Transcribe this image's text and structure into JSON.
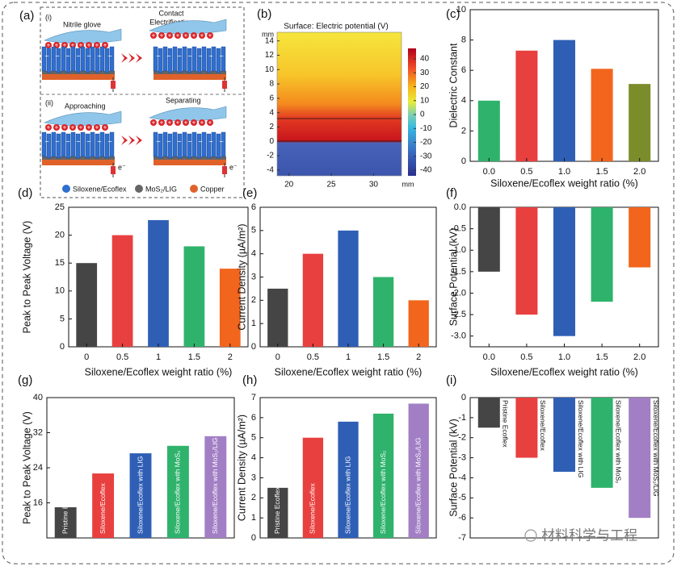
{
  "diagram": {
    "panel_label": "(a)",
    "part_i": "(i)",
    "glove": "Nitrile glove",
    "contact": [
      "Contact",
      "Electrification"
    ],
    "part_ii": "(ii)",
    "approaching": "Approaching",
    "separating": "Separating",
    "electron": "e⁻",
    "legend": [
      "Siloxene/Ecoflex",
      "MoS₂/LIG",
      "Copper"
    ]
  },
  "chart_data": [
    {
      "type": "heatmap",
      "panel_label": "(b)",
      "title": "Surface: Electric potential (V)",
      "xlim": [
        18.6,
        33.3
      ],
      "ylim": [
        -4.8,
        15.2
      ],
      "xticks": [
        20,
        25,
        30
      ],
      "yticks": [
        -4,
        -2,
        0,
        2,
        4,
        6,
        8,
        10,
        12,
        14
      ],
      "x_unit": "mm",
      "y_unit": "mm",
      "colorbar_lim": [
        -44,
        47.5
      ],
      "colorbar_ticks": [
        40,
        30,
        20,
        10,
        0,
        -10,
        -20,
        -30,
        -40
      ]
    },
    {
      "type": "bar",
      "panel_label": "(c)",
      "categories": [
        "0.0",
        "0.5",
        "1.0",
        "1.5",
        "2.0"
      ],
      "values": [
        4,
        7.3,
        8,
        6.1,
        5.1
      ],
      "colors": [
        "#2fb36c",
        "#e8403f",
        "#2f5fb5",
        "#f2651d",
        "#7b8c2a"
      ],
      "ylim": [
        0,
        10
      ],
      "yticks": [
        0,
        2,
        4,
        6,
        8,
        10
      ],
      "xlabel": "Siloxene/Ecoflex weight ratio (%)",
      "ylabel": "Dielectric Constant"
    },
    {
      "type": "bar",
      "panel_label": "(d)",
      "categories": [
        "0",
        "0.5",
        "1",
        "1.5",
        "2"
      ],
      "values": [
        15,
        20,
        22.7,
        18,
        14
      ],
      "colors": [
        "#454545",
        "#e8403f",
        "#2f5fb5",
        "#2fb36c",
        "#f2651d"
      ],
      "ylim": [
        0,
        25
      ],
      "yticks": [
        0,
        5,
        10,
        15,
        20,
        25
      ],
      "xlabel": "Siloxene/Ecoflex weight ratio (%)",
      "ylabel": "Peak to Peak Voltage (V)"
    },
    {
      "type": "bar",
      "panel_label": "(e)",
      "categories": [
        "0",
        "0.5",
        "1",
        "1.5",
        "2"
      ],
      "values": [
        2.5,
        4,
        5,
        3,
        2
      ],
      "colors": [
        "#454545",
        "#e8403f",
        "#2f5fb5",
        "#2fb36c",
        "#f2651d"
      ],
      "ylim": [
        0,
        6
      ],
      "yticks": [
        0,
        1,
        2,
        3,
        4,
        5,
        6
      ],
      "xlabel": "Siloxene/Ecoflex weight ratio (%)",
      "ylabel": "Current Density (µA/m²)"
    },
    {
      "type": "bar",
      "panel_label": "(f)",
      "categories": [
        "0.0",
        "0.5",
        "1.0",
        "1.5",
        "2.0"
      ],
      "values": [
        -1.5,
        -2.5,
        -3,
        -2.2,
        -1.4
      ],
      "colors": [
        "#454545",
        "#e8403f",
        "#2f5fb5",
        "#2fb36c",
        "#f2651d"
      ],
      "ylim": [
        -3.25,
        0
      ],
      "yticks": [
        {
          "value": 0,
          "label": "0.0"
        },
        -0.5,
        {
          "value": -1,
          "label": "-1.0"
        },
        -1.5,
        {
          "value": -2,
          "label": "-2.0"
        },
        -2.5,
        {
          "value": -3,
          "label": "-3.0"
        }
      ],
      "xlabel": "Siloxene/Ecoflex weight ratio (%)",
      "ylabel": "Surface Potential (kV)"
    },
    {
      "type": "bar",
      "panel_label": "(g)",
      "categories": [
        "Pristine Ecoflex",
        "Siloxene/Ecoflex",
        "Siloxene/Ecoflex with LIG",
        "Siloxene/Ecoflex with MoS₂",
        "Siloxene/Ecoflex with MoS₂/LIG"
      ],
      "values": [
        15,
        22.7,
        27.3,
        29,
        31.2
      ],
      "colors": [
        "#454545",
        "#e8403f",
        "#2f5fb5",
        "#2fb36c",
        "#a27fc4"
      ],
      "ylim": [
        8,
        40
      ],
      "yticks": [
        16,
        24,
        32,
        40
      ],
      "ylabel": "Peak to Peak Voltage (V)"
    },
    {
      "type": "bar",
      "panel_label": "(h)",
      "categories": [
        "Pristine Ecoflex",
        "Siloxene/Ecoflex",
        "Siloxene/Ecoflex with LIG",
        "Siloxene/Ecoflex with MoS₂",
        "Siloxene/Ecoflex with MoS₂/LIG"
      ],
      "values": [
        2.5,
        5,
        5.8,
        6.2,
        6.7
      ],
      "colors": [
        "#454545",
        "#e8403f",
        "#2f5fb5",
        "#2fb36c",
        "#a27fc4"
      ],
      "ylim": [
        0,
        7
      ],
      "yticks": [
        0,
        1,
        2,
        3,
        4,
        5,
        6,
        7
      ],
      "ylabel": "Current Density (µA/m²)"
    },
    {
      "type": "bar",
      "panel_label": "(i)",
      "categories": [
        "Pristine Ecoflex",
        "Siloxene/Ecoflex",
        "Siloxene/Ecoflex with LIG",
        "Siloxene/Ecoflex with MoS₂",
        "Siloxene/Ecoflex with MoS₂/LIG"
      ],
      "values": [
        -1.5,
        -3,
        -3.7,
        -4.5,
        -6
      ],
      "colors": [
        "#454545",
        "#e8403f",
        "#2f5fb5",
        "#2fb36c",
        "#a27fc4"
      ],
      "ylim": [
        -7,
        0
      ],
      "yticks": [
        0,
        -1,
        -2,
        -3,
        -4,
        -5,
        -6,
        -7
      ],
      "ylabel": "Surface Potential (kV)"
    }
  ],
  "watermark": "材料科学与工程"
}
